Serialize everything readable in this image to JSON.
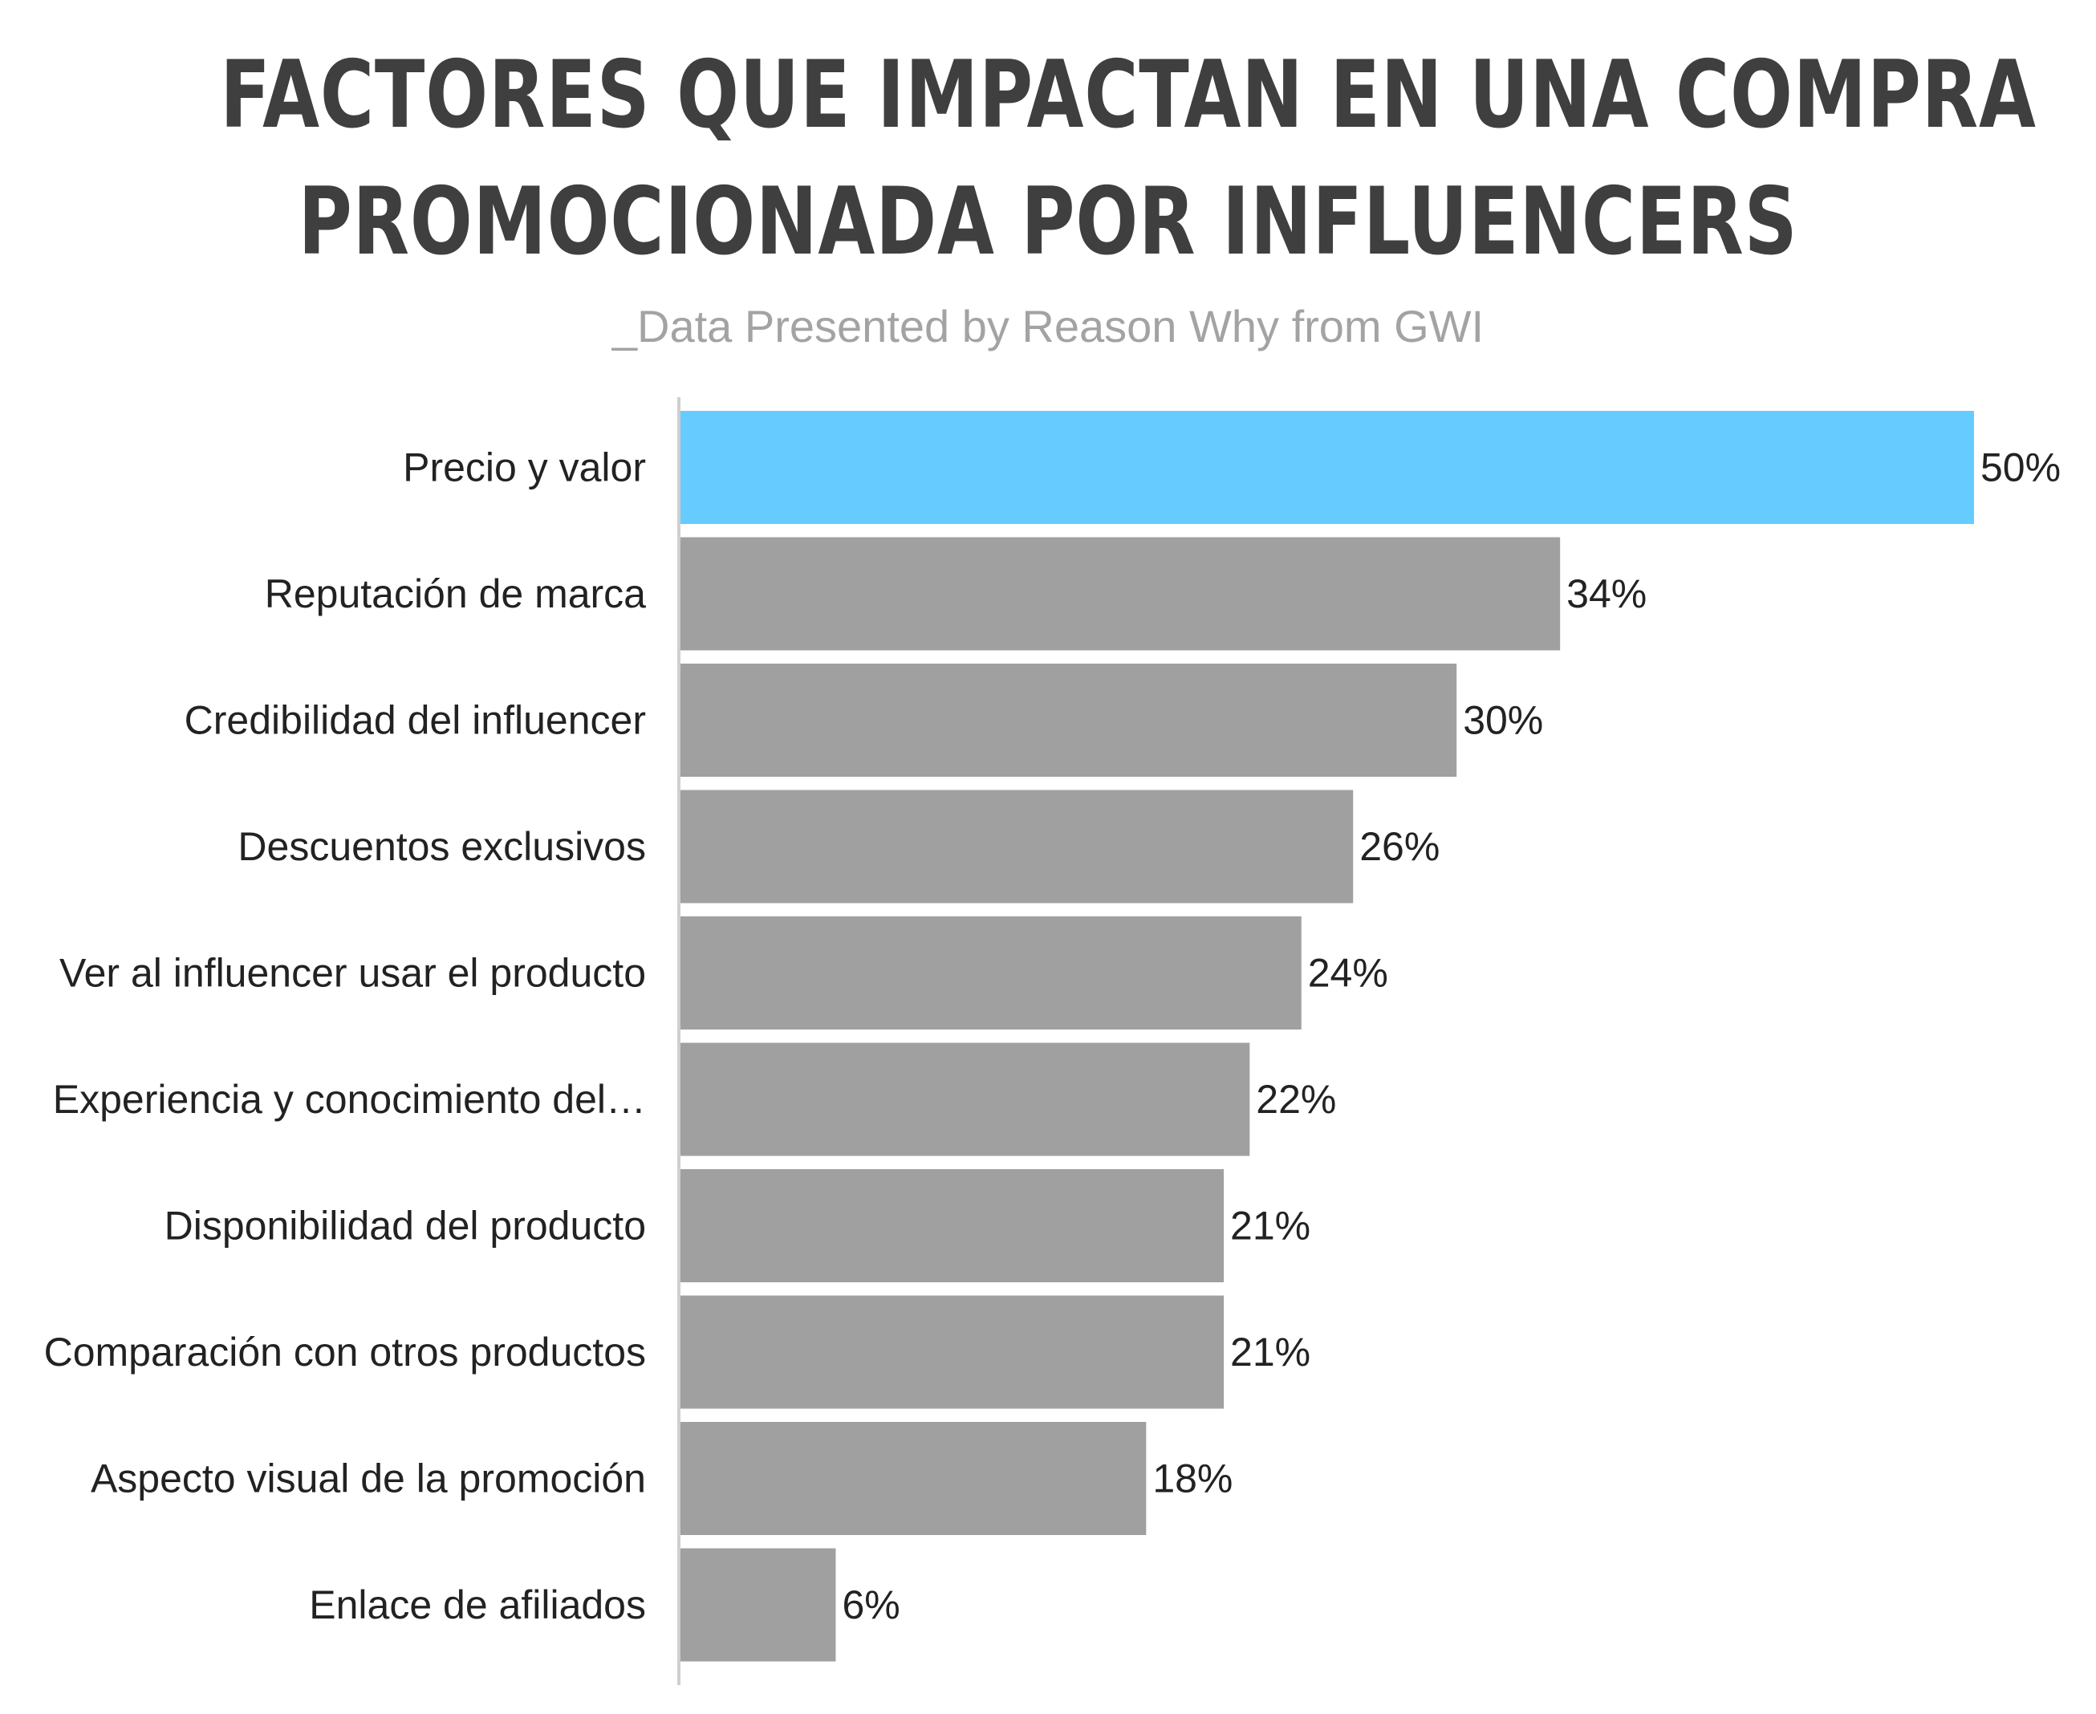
{
  "chart_data": {
    "type": "bar",
    "orientation": "horizontal",
    "title_lines": [
      "FACTORES QUE IMPACTAN EN UNA COMPRA",
      "PROMOCIONADA POR INFLUENCERS"
    ],
    "subtitle": "_Data Presented by Reason Why from GWI",
    "categories": [
      "Precio y valor",
      "Reputación de marca",
      "Credibilidad del influencer",
      "Descuentos exclusivos",
      "Ver al influencer usar el producto",
      "Experiencia y conocimiento del…",
      "Disponibilidad del producto",
      "Comparación con otros productos",
      "Aspecto visual de la promoción",
      "Enlace de afiliados"
    ],
    "values": [
      50,
      34,
      30,
      26,
      24,
      22,
      21,
      21,
      18,
      6
    ],
    "value_labels": [
      "50%",
      "34%",
      "30%",
      "26%",
      "24%",
      "22%",
      "21%",
      "21%",
      "18%",
      "6%"
    ],
    "xlim": [
      0,
      50
    ],
    "grid": false,
    "legend": "none",
    "colors": {
      "highlight": "#66ccff",
      "bar": "#a0a0a0",
      "axis": "#cfcfcf",
      "label": "#222222",
      "title": "#3f3f3f",
      "subtitle": "#a3a3a3"
    }
  }
}
